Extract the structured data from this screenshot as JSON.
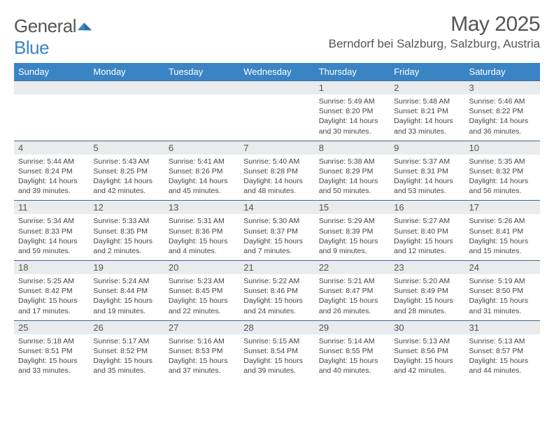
{
  "logo": {
    "prefix": "General",
    "suffix": "Blue"
  },
  "title": "May 2025",
  "location": "Berndorf bei Salzburg, Salzburg, Austria",
  "colors": {
    "header_bg": "#3b84c4",
    "header_text": "#ffffff",
    "daynum_bg": "#e9ebec",
    "rule": "#3b6a95",
    "body_text": "#444444"
  },
  "weekdays": [
    "Sunday",
    "Monday",
    "Tuesday",
    "Wednesday",
    "Thursday",
    "Friday",
    "Saturday"
  ],
  "weeks": [
    [
      {
        "n": "",
        "sr": "",
        "ss": "",
        "dl": ""
      },
      {
        "n": "",
        "sr": "",
        "ss": "",
        "dl": ""
      },
      {
        "n": "",
        "sr": "",
        "ss": "",
        "dl": ""
      },
      {
        "n": "",
        "sr": "",
        "ss": "",
        "dl": ""
      },
      {
        "n": "1",
        "sr": "Sunrise: 5:49 AM",
        "ss": "Sunset: 8:20 PM",
        "dl": "Daylight: 14 hours and 30 minutes."
      },
      {
        "n": "2",
        "sr": "Sunrise: 5:48 AM",
        "ss": "Sunset: 8:21 PM",
        "dl": "Daylight: 14 hours and 33 minutes."
      },
      {
        "n": "3",
        "sr": "Sunrise: 5:46 AM",
        "ss": "Sunset: 8:22 PM",
        "dl": "Daylight: 14 hours and 36 minutes."
      }
    ],
    [
      {
        "n": "4",
        "sr": "Sunrise: 5:44 AM",
        "ss": "Sunset: 8:24 PM",
        "dl": "Daylight: 14 hours and 39 minutes."
      },
      {
        "n": "5",
        "sr": "Sunrise: 5:43 AM",
        "ss": "Sunset: 8:25 PM",
        "dl": "Daylight: 14 hours and 42 minutes."
      },
      {
        "n": "6",
        "sr": "Sunrise: 5:41 AM",
        "ss": "Sunset: 8:26 PM",
        "dl": "Daylight: 14 hours and 45 minutes."
      },
      {
        "n": "7",
        "sr": "Sunrise: 5:40 AM",
        "ss": "Sunset: 8:28 PM",
        "dl": "Daylight: 14 hours and 48 minutes."
      },
      {
        "n": "8",
        "sr": "Sunrise: 5:38 AM",
        "ss": "Sunset: 8:29 PM",
        "dl": "Daylight: 14 hours and 50 minutes."
      },
      {
        "n": "9",
        "sr": "Sunrise: 5:37 AM",
        "ss": "Sunset: 8:31 PM",
        "dl": "Daylight: 14 hours and 53 minutes."
      },
      {
        "n": "10",
        "sr": "Sunrise: 5:35 AM",
        "ss": "Sunset: 8:32 PM",
        "dl": "Daylight: 14 hours and 56 minutes."
      }
    ],
    [
      {
        "n": "11",
        "sr": "Sunrise: 5:34 AM",
        "ss": "Sunset: 8:33 PM",
        "dl": "Daylight: 14 hours and 59 minutes."
      },
      {
        "n": "12",
        "sr": "Sunrise: 5:33 AM",
        "ss": "Sunset: 8:35 PM",
        "dl": "Daylight: 15 hours and 2 minutes."
      },
      {
        "n": "13",
        "sr": "Sunrise: 5:31 AM",
        "ss": "Sunset: 8:36 PM",
        "dl": "Daylight: 15 hours and 4 minutes."
      },
      {
        "n": "14",
        "sr": "Sunrise: 5:30 AM",
        "ss": "Sunset: 8:37 PM",
        "dl": "Daylight: 15 hours and 7 minutes."
      },
      {
        "n": "15",
        "sr": "Sunrise: 5:29 AM",
        "ss": "Sunset: 8:39 PM",
        "dl": "Daylight: 15 hours and 9 minutes."
      },
      {
        "n": "16",
        "sr": "Sunrise: 5:27 AM",
        "ss": "Sunset: 8:40 PM",
        "dl": "Daylight: 15 hours and 12 minutes."
      },
      {
        "n": "17",
        "sr": "Sunrise: 5:26 AM",
        "ss": "Sunset: 8:41 PM",
        "dl": "Daylight: 15 hours and 15 minutes."
      }
    ],
    [
      {
        "n": "18",
        "sr": "Sunrise: 5:25 AM",
        "ss": "Sunset: 8:42 PM",
        "dl": "Daylight: 15 hours and 17 minutes."
      },
      {
        "n": "19",
        "sr": "Sunrise: 5:24 AM",
        "ss": "Sunset: 8:44 PM",
        "dl": "Daylight: 15 hours and 19 minutes."
      },
      {
        "n": "20",
        "sr": "Sunrise: 5:23 AM",
        "ss": "Sunset: 8:45 PM",
        "dl": "Daylight: 15 hours and 22 minutes."
      },
      {
        "n": "21",
        "sr": "Sunrise: 5:22 AM",
        "ss": "Sunset: 8:46 PM",
        "dl": "Daylight: 15 hours and 24 minutes."
      },
      {
        "n": "22",
        "sr": "Sunrise: 5:21 AM",
        "ss": "Sunset: 8:47 PM",
        "dl": "Daylight: 15 hours and 26 minutes."
      },
      {
        "n": "23",
        "sr": "Sunrise: 5:20 AM",
        "ss": "Sunset: 8:49 PM",
        "dl": "Daylight: 15 hours and 28 minutes."
      },
      {
        "n": "24",
        "sr": "Sunrise: 5:19 AM",
        "ss": "Sunset: 8:50 PM",
        "dl": "Daylight: 15 hours and 31 minutes."
      }
    ],
    [
      {
        "n": "25",
        "sr": "Sunrise: 5:18 AM",
        "ss": "Sunset: 8:51 PM",
        "dl": "Daylight: 15 hours and 33 minutes."
      },
      {
        "n": "26",
        "sr": "Sunrise: 5:17 AM",
        "ss": "Sunset: 8:52 PM",
        "dl": "Daylight: 15 hours and 35 minutes."
      },
      {
        "n": "27",
        "sr": "Sunrise: 5:16 AM",
        "ss": "Sunset: 8:53 PM",
        "dl": "Daylight: 15 hours and 37 minutes."
      },
      {
        "n": "28",
        "sr": "Sunrise: 5:15 AM",
        "ss": "Sunset: 8:54 PM",
        "dl": "Daylight: 15 hours and 39 minutes."
      },
      {
        "n": "29",
        "sr": "Sunrise: 5:14 AM",
        "ss": "Sunset: 8:55 PM",
        "dl": "Daylight: 15 hours and 40 minutes."
      },
      {
        "n": "30",
        "sr": "Sunrise: 5:13 AM",
        "ss": "Sunset: 8:56 PM",
        "dl": "Daylight: 15 hours and 42 minutes."
      },
      {
        "n": "31",
        "sr": "Sunrise: 5:13 AM",
        "ss": "Sunset: 8:57 PM",
        "dl": "Daylight: 15 hours and 44 minutes."
      }
    ]
  ]
}
